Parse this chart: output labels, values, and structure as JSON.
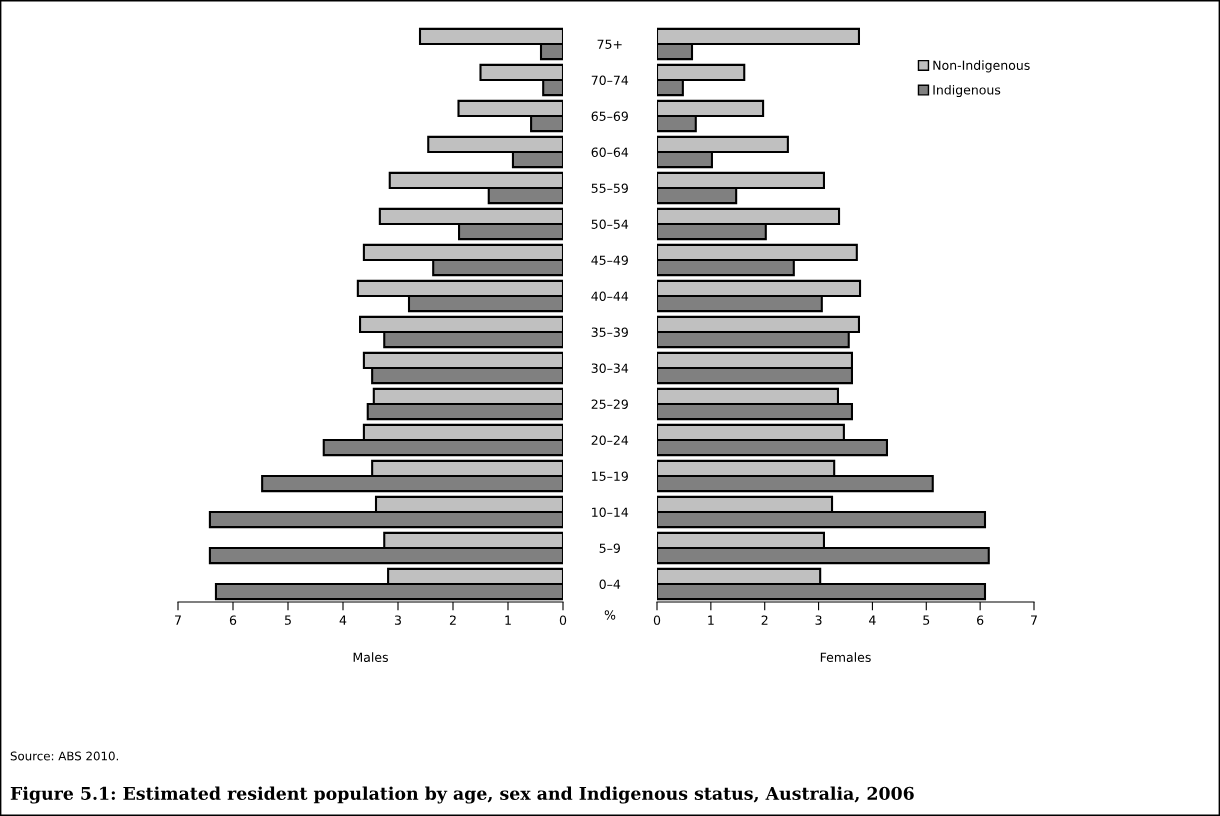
{
  "chart_data": [
    {
      "type": "bar",
      "orientation": "horizontal",
      "title": "Figure 5.1: Estimated resident population by age, sex and Indigenous status, Australia, 2006",
      "annotations": [
        "Source: ABS 2010.",
        "%"
      ],
      "xlabel": "Males",
      "categories": [
        null,
        null,
        null,
        null,
        null,
        null,
        null,
        null,
        null,
        null,
        null,
        null,
        null,
        null,
        null,
        null
      ],
      "series": [
        {
          "color": "#c0c0c0",
          "values": [
            2.6,
            1.5,
            1.9,
            2.45,
            3.15,
            3.33,
            3.62,
            3.73,
            3.69,
            3.62,
            3.44,
            3.62,
            3.47,
            3.4,
            3.25,
            3.18
          ]
        },
        {
          "color": "#808080",
          "values": [
            0.4,
            0.36,
            0.58,
            0.91,
            1.35,
            1.89,
            2.36,
            2.8,
            3.25,
            3.47,
            3.55,
            4.35,
            5.47,
            6.42,
            6.42,
            6.31
          ]
        }
      ],
      "xlim": [
        7,
        0
      ],
      "xticks": [
        7,
        6,
        5,
        4,
        3,
        2,
        1,
        0
      ],
      "tick_labels": "x",
      "grid": false
    },
    {
      "type": "bar",
      "orientation": "horizontal",
      "xlabel": "Females",
      "categories": [
        "75+",
        "70–74",
        "65–69",
        "60–64",
        "55–59",
        "50–54",
        "45–49",
        "40–44",
        "35–39",
        "30–34",
        "25–29",
        "20–24",
        "15–19",
        "10–14",
        "5–9",
        "0–4"
      ],
      "series": [
        {
          "name": "Non-Indigenous",
          "color": "#c0c0c0",
          "values": [
            3.75,
            1.62,
            1.97,
            2.43,
            3.1,
            3.38,
            3.71,
            3.77,
            3.75,
            3.62,
            3.36,
            3.47,
            3.29,
            3.25,
            3.1,
            3.03
          ]
        },
        {
          "name": "Indigenous",
          "color": "#808080",
          "values": [
            0.65,
            0.48,
            0.72,
            1.02,
            1.47,
            2.02,
            2.54,
            3.06,
            3.56,
            3.62,
            3.62,
            4.27,
            5.12,
            6.09,
            6.16,
            6.09
          ]
        }
      ],
      "xlim": [
        0,
        7
      ],
      "xticks": [
        0,
        1,
        2,
        3,
        4,
        5,
        6,
        7
      ],
      "legend": "top right",
      "grid": false
    }
  ]
}
